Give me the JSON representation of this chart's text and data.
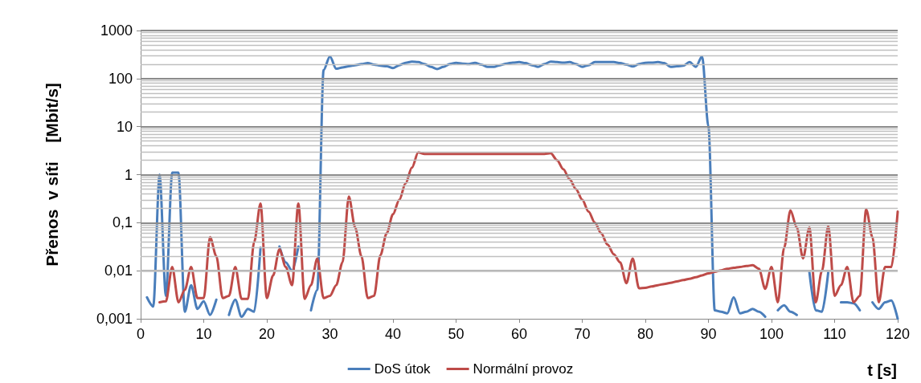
{
  "chart_data": {
    "type": "line",
    "ylabel": "Přenos  v síti    [Mbit/s]",
    "xlabel": "t [s]",
    "log": "y",
    "grid": "y",
    "legend": "bottom",
    "marker": "none",
    "line_style": "solid",
    "x": [
      1,
      2,
      3,
      4,
      5,
      6,
      7,
      8,
      9,
      10,
      11,
      12,
      13,
      14,
      15,
      16,
      17,
      18,
      19,
      20,
      21,
      22,
      23,
      24,
      25,
      26,
      27,
      28,
      29,
      30,
      31,
      32,
      33,
      34,
      35,
      36,
      37,
      38,
      39,
      40,
      41,
      42,
      43,
      44,
      45,
      46,
      47,
      48,
      49,
      50,
      51,
      52,
      53,
      54,
      55,
      56,
      57,
      58,
      59,
      60,
      61,
      62,
      63,
      64,
      65,
      66,
      67,
      68,
      69,
      70,
      71,
      72,
      73,
      74,
      75,
      76,
      77,
      78,
      79,
      80,
      81,
      82,
      83,
      84,
      85,
      86,
      87,
      88,
      89,
      90,
      91,
      92,
      93,
      94,
      95,
      96,
      97,
      98,
      99,
      100,
      101,
      102,
      103,
      104,
      105,
      106,
      107,
      108,
      109,
      110,
      111,
      112,
      113,
      114,
      115,
      116,
      117,
      118,
      119,
      120
    ],
    "xlim": [
      0,
      120
    ],
    "xticks": [
      0,
      10,
      20,
      30,
      40,
      50,
      60,
      70,
      80,
      90,
      100,
      110,
      120
    ],
    "ylim": [
      0.001,
      1000
    ],
    "yticks": [
      {
        "value": 0.001,
        "label": "0,001"
      },
      {
        "value": 0.01,
        "label": "0,01"
      },
      {
        "value": 0.1,
        "label": "0,1"
      },
      1,
      10,
      100,
      1000
    ],
    "series": [
      {
        "name": "DoS útok",
        "color": "#4a7ebb",
        "values": [
          0.0028,
          0.0018,
          1,
          0.003,
          1.1,
          1.1,
          0.0014,
          0.005,
          0.0016,
          0.0023,
          0.0012,
          0.0025,
          null,
          0.0012,
          0.0025,
          0.0011,
          0.0016,
          0.0014,
          0.03,
          null,
          null,
          0.032,
          0.015,
          0.01,
          0.032,
          null,
          0.0015,
          0.004,
          150,
          290,
          160,
          170,
          180,
          190,
          200,
          210,
          195,
          185,
          180,
          165,
          190,
          213,
          225,
          220,
          200,
          175,
          158,
          175,
          200,
          213,
          205,
          200,
          213,
          195,
          175,
          175,
          190,
          205,
          215,
          220,
          210,
          190,
          175,
          200,
          225,
          220,
          215,
          220,
          200,
          175,
          190,
          220,
          220,
          220,
          220,
          210,
          195,
          178,
          200,
          213,
          215,
          220,
          210,
          175,
          180,
          185,
          220,
          175,
          290,
          10,
          0.0015,
          0.0014,
          0.0013,
          0.0028,
          0.0013,
          0.0014,
          0.0016,
          0.0014,
          0.0011,
          null,
          0.0015,
          0.0019,
          0.0014,
          0.0012,
          null,
          0.0095,
          0.0015,
          0.0014,
          0.0095,
          null,
          0.0022,
          0.0022,
          0.0021,
          0.0015,
          null,
          0.0022,
          0.0016,
          0.0022,
          0.0024,
          0.001
        ]
      },
      {
        "name": "Normální provoz",
        "color": "#be4b48",
        "values": [
          null,
          null,
          0.0022,
          0.0023,
          0.012,
          0.0022,
          0.004,
          0.012,
          0.0027,
          0.0027,
          0.05,
          0.02,
          0.0027,
          0.003,
          0.012,
          0.0026,
          0.0026,
          0.04,
          0.25,
          0.0027,
          0.008,
          0.028,
          0.012,
          0.005,
          0.25,
          0.0026,
          0.005,
          0.018,
          0.0027,
          0.003,
          0.005,
          0.015,
          0.35,
          0.08,
          0.02,
          0.0027,
          0.003,
          0.021,
          0.06,
          0.15,
          0.3,
          0.66,
          1.4,
          2.9,
          2.7,
          2.7,
          2.7,
          2.7,
          2.7,
          2.7,
          2.7,
          2.7,
          2.7,
          2.7,
          2.7,
          2.7,
          2.7,
          2.7,
          2.7,
          2.7,
          2.7,
          2.7,
          2.7,
          2.7,
          2.8,
          2.0,
          1.3,
          0.8,
          0.5,
          0.3,
          0.17,
          0.1,
          0.06,
          0.035,
          0.022,
          0.015,
          0.0055,
          0.018,
          0.0043,
          0.0044,
          0.0047,
          0.005,
          0.0053,
          0.0056,
          0.006,
          0.0064,
          0.0068,
          0.0073,
          0.008,
          0.0088,
          0.0095,
          0.0102,
          0.011,
          0.0115,
          0.012,
          0.0125,
          0.013,
          0.011,
          0.0042,
          0.012,
          0.0022,
          0.03,
          0.18,
          0.08,
          0.018,
          0.08,
          0.0022,
          0.01,
          0.085,
          0.003,
          0.005,
          0.012,
          0.0022,
          0.003,
          0.19,
          0.05,
          0.0022,
          0.012,
          0.012,
          0.17
        ]
      }
    ]
  }
}
